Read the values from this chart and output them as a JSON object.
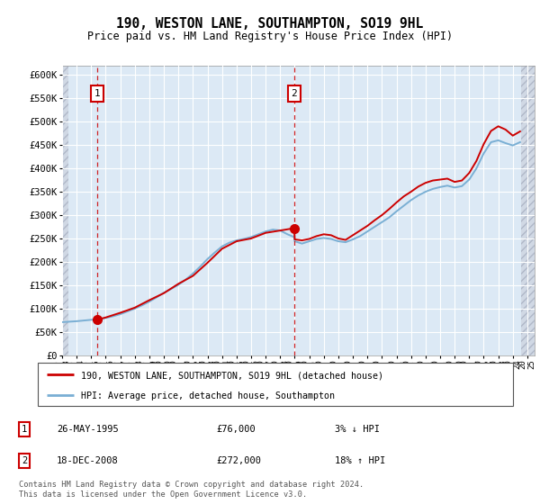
{
  "title": "190, WESTON LANE, SOUTHAMPTON, SO19 9HL",
  "subtitle": "Price paid vs. HM Land Registry's House Price Index (HPI)",
  "ylim": [
    0,
    620000
  ],
  "yticks": [
    0,
    50000,
    100000,
    150000,
    200000,
    250000,
    300000,
    350000,
    400000,
    450000,
    500000,
    550000,
    600000
  ],
  "xlim_start": 1993.0,
  "xlim_end": 2025.5,
  "plot_bg_color": "#dce9f5",
  "hatch_bg_color": "#d0d8e4",
  "grid_color": "#ffffff",
  "sale1_date": 1995.4,
  "sale1_price": 76000,
  "sale1_label": "1",
  "sale2_date": 2008.96,
  "sale2_price": 272000,
  "sale2_label": "2",
  "red_line_color": "#cc0000",
  "blue_line_color": "#7aafd4",
  "annotation_box_color": "#cc0000",
  "legend_label_red": "190, WESTON LANE, SOUTHAMPTON, SO19 9HL (detached house)",
  "legend_label_blue": "HPI: Average price, detached house, Southampton",
  "footer_line1": "Contains HM Land Registry data © Crown copyright and database right 2024.",
  "footer_line2": "This data is licensed under the Open Government Licence v3.0.",
  "table_rows": [
    {
      "num": "1",
      "date": "26-MAY-1995",
      "price": "£76,000",
      "pct": "3% ↓ HPI"
    },
    {
      "num": "2",
      "date": "18-DEC-2008",
      "price": "£272,000",
      "pct": "18% ↑ HPI"
    }
  ],
  "hpi_years": [
    1993,
    1993.5,
    1994,
    1994.5,
    1995,
    1995.4,
    1995.5,
    1996,
    1996.5,
    1997,
    1997.5,
    1998,
    1998.5,
    1999,
    1999.5,
    2000,
    2000.5,
    2001,
    2001.5,
    2002,
    2002.5,
    2003,
    2003.5,
    2004,
    2004.5,
    2005,
    2005.5,
    2006,
    2006.5,
    2007,
    2007.5,
    2008,
    2008.5,
    2008.96,
    2009,
    2009.5,
    2010,
    2010.5,
    2011,
    2011.5,
    2012,
    2012.5,
    2013,
    2013.5,
    2014,
    2014.5,
    2015,
    2015.5,
    2016,
    2016.5,
    2017,
    2017.5,
    2018,
    2018.5,
    2019,
    2019.5,
    2020,
    2020.5,
    2021,
    2021.5,
    2022,
    2022.5,
    2023,
    2023.5,
    2024,
    2024.5
  ],
  "hpi_values": [
    71000,
    72000,
    73000,
    74500,
    76000,
    76500,
    77000,
    80000,
    83500,
    88000,
    94000,
    100000,
    107000,
    115000,
    124000,
    134000,
    142000,
    151000,
    162000,
    175000,
    190000,
    206000,
    220000,
    233000,
    241000,
    246000,
    249000,
    253000,
    259000,
    265000,
    269000,
    267000,
    259000,
    253000,
    244000,
    239000,
    244000,
    249000,
    251000,
    249000,
    244000,
    242000,
    248000,
    255000,
    265000,
    275000,
    285000,
    295000,
    308000,
    320000,
    332000,
    342000,
    350000,
    356000,
    360000,
    363000,
    359000,
    362000,
    376000,
    400000,
    432000,
    456000,
    460000,
    454000,
    449000,
    456000
  ],
  "red_years": [
    1995.4,
    1996,
    1997,
    1998,
    1999,
    2000,
    2001,
    2002,
    2003,
    2004,
    2005,
    2006,
    2007,
    2008,
    2008.96,
    2009,
    2009.5,
    2010,
    2010.5,
    2011,
    2011.5,
    2012,
    2012.5,
    2013,
    2013.5,
    2014,
    2014.5,
    2015,
    2015.5,
    2016,
    2016.5,
    2017,
    2017.5,
    2018,
    2018.5,
    2019,
    2019.5,
    2020,
    2020.5,
    2021,
    2021.5,
    2022,
    2022.5,
    2023,
    2023.5,
    2024,
    2024.5
  ],
  "red_values": [
    76000,
    81000,
    91000,
    102000,
    118000,
    133000,
    153000,
    170000,
    198000,
    228000,
    244000,
    250000,
    262000,
    267000,
    272000,
    248000,
    246000,
    249000,
    255000,
    259000,
    257000,
    250000,
    247000,
    257000,
    267000,
    277000,
    289000,
    300000,
    313000,
    327000,
    340000,
    350000,
    361000,
    369000,
    374000,
    376000,
    378000,
    371000,
    374000,
    390000,
    416000,
    452000,
    480000,
    490000,
    483000,
    470000,
    479000
  ]
}
